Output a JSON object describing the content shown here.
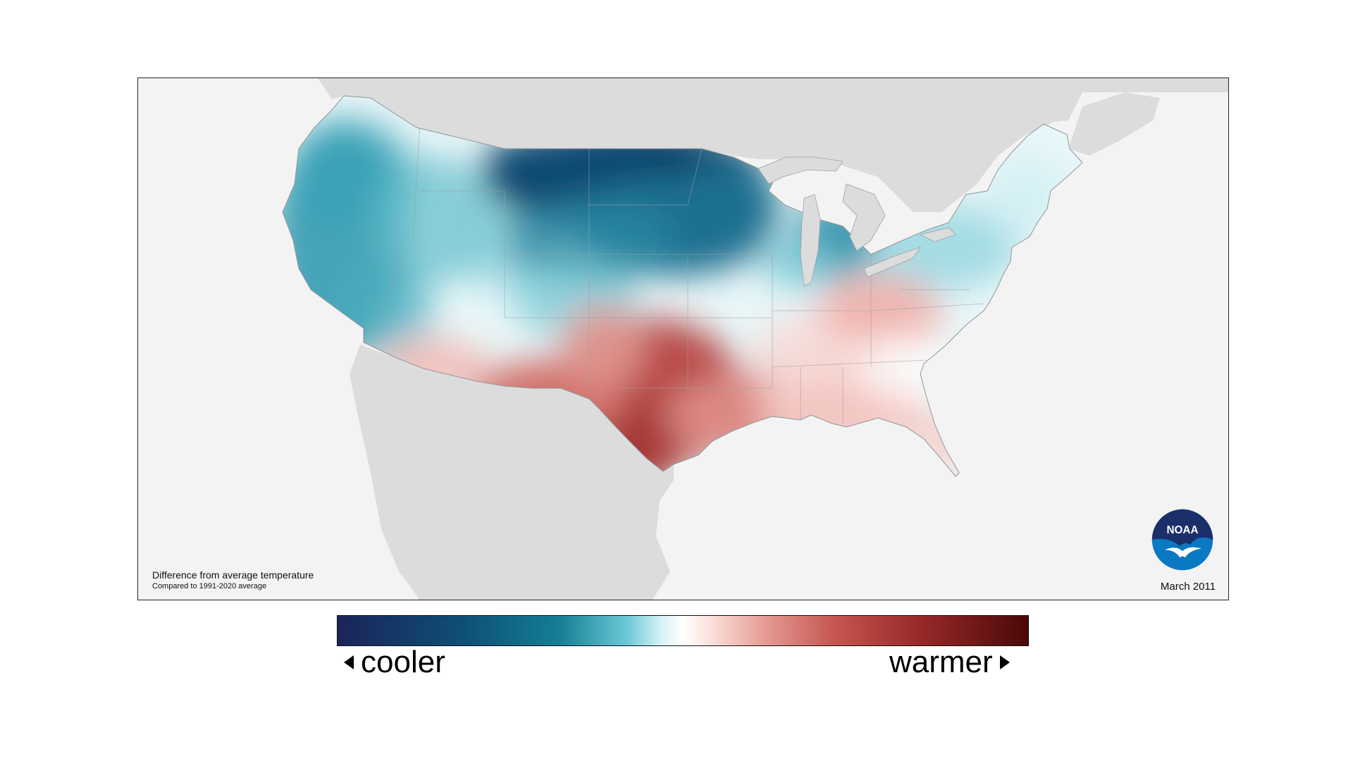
{
  "map": {
    "caption_title": "Difference from average temperature",
    "caption_subtitle": "Compared to 1991-2020 average",
    "date": "March 2011",
    "logo_text": "NOAA",
    "anomaly_palette": {
      "deep_cool": "#0b3e66",
      "cool": "#2a8ea8",
      "light_cool": "#bfe9ef",
      "neutral": "#ffffff",
      "light_warm": "#f6c9c4",
      "warm": "#d77a74",
      "hot": "#a83a38"
    },
    "land_outside_color": "#dcdcdc",
    "water_color": "#f3f3f3"
  },
  "legend": {
    "cool_label": "cooler",
    "warm_label": "warmer"
  }
}
